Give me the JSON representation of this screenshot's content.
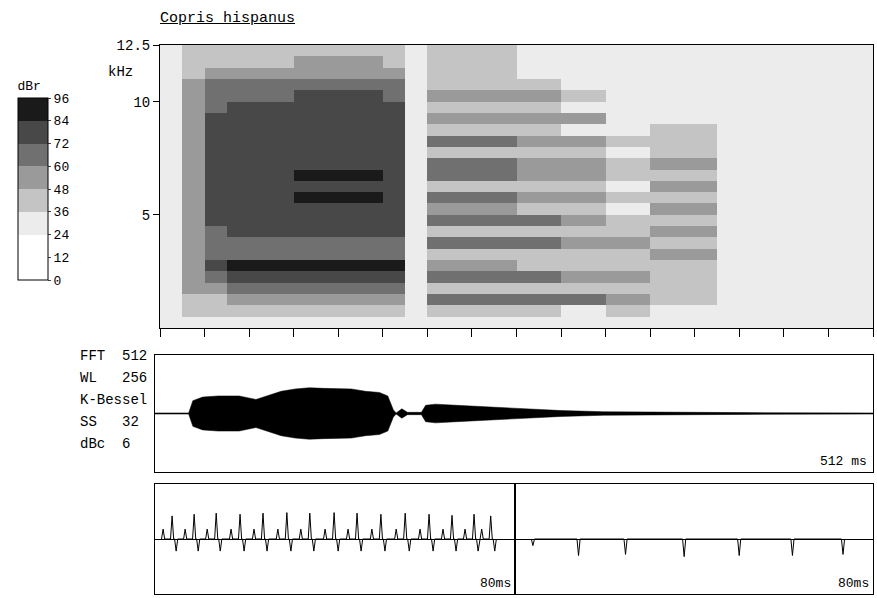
{
  "chart_data": [
    {
      "type": "heatmap",
      "title": "Copris hispanus",
      "y_label": "kHz",
      "x_bins": [
        0,
        16,
        32,
        48,
        64,
        80,
        96,
        112,
        128,
        144,
        160,
        176,
        192,
        208,
        224,
        240,
        256,
        272,
        288,
        304,
        320,
        336,
        352,
        368,
        384,
        400,
        416,
        432,
        448,
        464,
        480,
        496,
        512
      ],
      "y_bins": [
        0,
        0.5,
        1,
        1.5,
        2,
        2.5,
        3,
        3.5,
        4,
        4.5,
        5,
        5.5,
        6,
        6.5,
        7,
        7.5,
        8,
        8.5,
        9,
        9.5,
        10,
        10.5,
        11,
        11.5,
        12,
        12.5
      ],
      "values": [
        [
          26,
          28,
          26,
          30,
          30,
          30,
          33,
          33,
          33,
          33,
          30,
          30,
          28,
          28,
          28,
          28,
          26,
          26,
          26,
          26,
          26,
          26,
          26,
          26,
          26,
          26,
          26,
          26,
          26,
          26,
          26,
          26
        ],
        [
          33,
          37,
          36,
          40,
          40,
          40,
          43,
          43,
          43,
          43,
          40,
          30,
          42,
          42,
          42,
          42,
          37,
          37,
          33,
          33,
          38,
          38,
          33,
          33,
          33,
          33,
          33,
          33,
          33,
          33,
          33,
          33
        ],
        [
          33,
          42,
          46,
          50,
          50,
          50,
          53,
          53,
          53,
          53,
          50,
          30,
          70,
          70,
          70,
          70,
          65,
          65,
          60,
          60,
          58,
          58,
          36,
          36,
          36,
          33,
          33,
          33,
          33,
          33,
          33,
          33
        ],
        [
          33,
          48,
          58,
          62,
          62,
          62,
          65,
          65,
          65,
          65,
          62,
          30,
          46,
          46,
          46,
          46,
          41,
          41,
          36,
          36,
          38,
          38,
          36,
          36,
          36,
          33,
          33,
          33,
          33,
          33,
          33,
          33
        ],
        [
          33,
          54,
          70,
          74,
          74,
          74,
          77,
          77,
          77,
          77,
          74,
          30,
          68,
          68,
          68,
          68,
          63,
          63,
          58,
          58,
          55,
          55,
          40,
          40,
          40,
          33,
          33,
          33,
          33,
          33,
          33,
          33
        ],
        [
          33,
          59,
          80,
          84,
          84,
          84,
          87,
          87,
          87,
          87,
          84,
          30,
          50,
          50,
          50,
          50,
          45,
          45,
          40,
          40,
          40,
          40,
          42,
          42,
          42,
          33,
          33,
          33,
          33,
          33,
          33,
          33
        ],
        [
          33,
          51,
          64,
          68,
          68,
          68,
          71,
          71,
          71,
          71,
          68,
          30,
          46,
          46,
          46,
          46,
          41,
          41,
          36,
          36,
          38,
          38,
          48,
          48,
          48,
          33,
          33,
          33,
          33,
          33,
          33,
          33
        ],
        [
          33,
          50,
          62,
          66,
          66,
          66,
          69,
          69,
          69,
          69,
          66,
          30,
          66,
          66,
          66,
          66,
          61,
          61,
          56,
          56,
          50,
          50,
          45,
          45,
          45,
          33,
          33,
          33,
          33,
          33,
          33,
          33
        ],
        [
          33,
          54,
          70,
          74,
          74,
          74,
          77,
          77,
          77,
          77,
          74,
          30,
          46,
          46,
          46,
          46,
          41,
          41,
          36,
          36,
          36,
          36,
          50,
          50,
          50,
          33,
          33,
          33,
          33,
          33,
          33,
          33
        ],
        [
          33,
          56,
          74,
          78,
          78,
          78,
          81,
          81,
          81,
          81,
          78,
          30,
          66,
          66,
          66,
          66,
          61,
          61,
          56,
          56,
          46,
          46,
          44,
          44,
          44,
          33,
          33,
          33,
          33,
          33,
          33,
          33
        ],
        [
          33,
          57,
          76,
          80,
          80,
          80,
          83,
          83,
          83,
          83,
          80,
          30,
          48,
          48,
          48,
          48,
          43,
          43,
          38,
          38,
          34,
          34,
          50,
          50,
          50,
          33,
          33,
          33,
          33,
          33,
          33,
          33
        ],
        [
          33,
          58,
          78,
          82,
          82,
          82,
          85,
          85,
          85,
          85,
          82,
          30,
          64,
          64,
          64,
          64,
          59,
          59,
          54,
          54,
          42,
          42,
          44,
          44,
          44,
          33,
          33,
          33,
          33,
          33,
          33,
          33
        ],
        [
          33,
          56,
          74,
          78,
          78,
          78,
          81,
          81,
          81,
          81,
          78,
          30,
          46,
          46,
          46,
          46,
          41,
          41,
          36,
          36,
          34,
          34,
          48,
          48,
          48,
          33,
          33,
          33,
          33,
          33,
          33,
          33
        ],
        [
          33,
          58,
          78,
          82,
          82,
          82,
          85,
          85,
          85,
          85,
          82,
          30,
          62,
          62,
          62,
          62,
          57,
          57,
          52,
          52,
          40,
          40,
          44,
          44,
          44,
          33,
          33,
          33,
          33,
          33,
          33,
          33
        ],
        [
          33,
          57,
          76,
          80,
          80,
          80,
          83,
          83,
          83,
          83,
          80,
          30,
          60,
          60,
          60,
          60,
          55,
          55,
          50,
          50,
          36,
          36,
          48,
          48,
          48,
          33,
          33,
          33,
          33,
          33,
          33,
          33
        ],
        [
          33,
          56,
          74,
          78,
          78,
          78,
          81,
          81,
          81,
          81,
          78,
          30,
          46,
          46,
          46,
          46,
          41,
          41,
          36,
          36,
          34,
          34,
          42,
          42,
          42,
          33,
          33,
          33,
          33,
          33,
          33,
          33
        ],
        [
          33,
          57,
          76,
          80,
          80,
          80,
          83,
          83,
          83,
          83,
          80,
          30,
          60,
          60,
          60,
          60,
          55,
          55,
          50,
          50,
          36,
          36,
          40,
          40,
          40,
          33,
          33,
          33,
          33,
          33,
          33,
          33
        ],
        [
          33,
          56,
          74,
          78,
          78,
          78,
          81,
          81,
          81,
          81,
          78,
          30,
          44,
          44,
          44,
          44,
          39,
          39,
          34,
          34,
          33,
          33,
          36,
          36,
          36,
          33,
          33,
          33,
          33,
          33,
          33,
          33
        ],
        [
          33,
          55,
          72,
          76,
          76,
          76,
          79,
          79,
          79,
          79,
          76,
          30,
          58,
          58,
          58,
          58,
          53,
          53,
          48,
          48,
          33,
          33,
          34,
          34,
          34,
          33,
          33,
          33,
          33,
          33,
          33,
          33
        ],
        [
          33,
          54,
          70,
          74,
          74,
          74,
          77,
          77,
          77,
          77,
          74,
          30,
          44,
          44,
          44,
          44,
          39,
          39,
          34,
          34,
          33,
          33,
          33,
          33,
          33,
          33,
          33,
          33,
          33,
          33,
          33,
          33
        ],
        [
          33,
          52,
          66,
          70,
          70,
          70,
          73,
          73,
          73,
          73,
          70,
          30,
          54,
          54,
          54,
          54,
          49,
          49,
          44,
          44,
          33,
          33,
          33,
          33,
          33,
          33,
          33,
          33,
          33,
          33,
          33,
          33
        ],
        [
          33,
          49,
          60,
          64,
          64,
          64,
          67,
          67,
          67,
          67,
          64,
          30,
          42,
          42,
          42,
          42,
          37,
          37,
          33,
          33,
          33,
          33,
          33,
          33,
          33,
          33,
          33,
          33,
          33,
          33,
          33,
          33
        ],
        [
          33,
          44,
          50,
          54,
          54,
          54,
          57,
          57,
          57,
          57,
          54,
          30,
          40,
          40,
          40,
          40,
          35,
          35,
          33,
          33,
          33,
          33,
          33,
          33,
          33,
          33,
          33,
          33,
          33,
          33,
          33,
          33
        ],
        [
          33,
          40,
          42,
          46,
          46,
          46,
          49,
          49,
          49,
          49,
          46,
          30,
          38,
          38,
          38,
          38,
          33,
          33,
          33,
          33,
          33,
          33,
          33,
          33,
          33,
          33,
          33,
          33,
          33,
          33,
          33,
          33
        ],
        [
          33,
          37,
          36,
          40,
          40,
          40,
          43,
          43,
          43,
          43,
          40,
          30,
          36,
          36,
          36,
          36,
          33,
          33,
          33,
          33,
          33,
          33,
          33,
          33,
          33,
          33,
          33,
          33,
          33,
          33,
          33,
          33
        ]
      ],
      "xlim": [
        0,
        512
      ],
      "xticks": [
        0,
        32,
        64,
        96,
        128,
        160,
        192,
        224,
        256,
        288,
        320,
        352,
        384,
        416,
        448,
        480,
        512
      ],
      "ylim": [
        0,
        12.5
      ],
      "yticks": [
        5,
        10,
        12.5
      ],
      "tick_labels": "y",
      "colorbar": {
        "title": "dBr",
        "range": [
          0,
          96
        ],
        "ticks": [
          0,
          12,
          24,
          36,
          48,
          60,
          72,
          84,
          96
        ]
      }
    },
    {
      "type": "area",
      "x": [
        0,
        24,
        27,
        34,
        45,
        60,
        72,
        80,
        90,
        100,
        110,
        120,
        130,
        140,
        150,
        160,
        166,
        170,
        172,
        176,
        180,
        190,
        193,
        200,
        215,
        230,
        250,
        270,
        290,
        320,
        360,
        420,
        512
      ],
      "values": [
        0.01,
        0.01,
        0.22,
        0.28,
        0.3,
        0.3,
        0.24,
        0.3,
        0.38,
        0.42,
        0.44,
        0.43,
        0.42,
        0.42,
        0.38,
        0.36,
        0.3,
        0.06,
        0.01,
        0.08,
        0.02,
        0.02,
        0.14,
        0.16,
        0.14,
        0.12,
        0.1,
        0.07,
        0.05,
        0.03,
        0.02,
        0.015,
        0.01
      ],
      "xlim": [
        0,
        512
      ],
      "ylim": [
        -1,
        1
      ],
      "label": "512 ms",
      "tick_labels": false,
      "color": "#000000"
    },
    {
      "type": "line",
      "x": [
        1.8,
        3.8,
        4.7,
        6.7,
        8.7,
        9.6,
        11.6,
        13.6,
        14.5,
        16.9,
        18.9,
        19.8,
        22.0,
        24.0,
        24.9,
        27.3,
        29.3,
        30.2,
        32.4,
        34.4,
        35.3,
        37.8,
        39.8,
        40.7,
        42.9,
        44.9,
        45.8,
        48.2,
        50.2,
        51.1,
        53.6,
        55.6,
        56.5,
        58.9,
        60.9,
        61.8,
        64.0,
        66.0,
        66.9,
        68.9,
        70.9,
        71.8,
        72.6,
        74.6,
        75.5
      ],
      "values": [
        0.18,
        0.42,
        -0.22,
        0.18,
        0.45,
        -0.22,
        0.18,
        0.47,
        -0.22,
        0.18,
        0.45,
        -0.22,
        0.18,
        0.47,
        -0.22,
        0.18,
        0.48,
        -0.22,
        0.18,
        0.47,
        -0.22,
        0.18,
        0.48,
        -0.22,
        0.18,
        0.47,
        -0.22,
        0.18,
        0.45,
        -0.22,
        0.18,
        0.47,
        -0.22,
        0.18,
        0.45,
        -0.22,
        0.18,
        0.43,
        -0.22,
        0.18,
        0.45,
        -0.22,
        0.18,
        0.42,
        -0.22
      ],
      "xlim": [
        0,
        80
      ],
      "ylim": [
        -1,
        1
      ],
      "label": "80ms",
      "tick_labels": false,
      "color": "#000000"
    },
    {
      "type": "line",
      "x": [
        4.0,
        14.2,
        24.7,
        37.8,
        50.1,
        62.0,
        73.3
      ],
      "values": [
        -0.12,
        -0.3,
        -0.28,
        -0.32,
        -0.3,
        -0.3,
        -0.28
      ],
      "xlim": [
        0,
        80
      ],
      "ylim": [
        -1,
        1
      ],
      "label": "80ms",
      "tick_labels": false,
      "color": "#000000"
    }
  ],
  "analysis_parameters": [
    "FFT  512",
    "WL   256",
    "K-Bessel",
    "SS   32",
    "dBc  6"
  ]
}
